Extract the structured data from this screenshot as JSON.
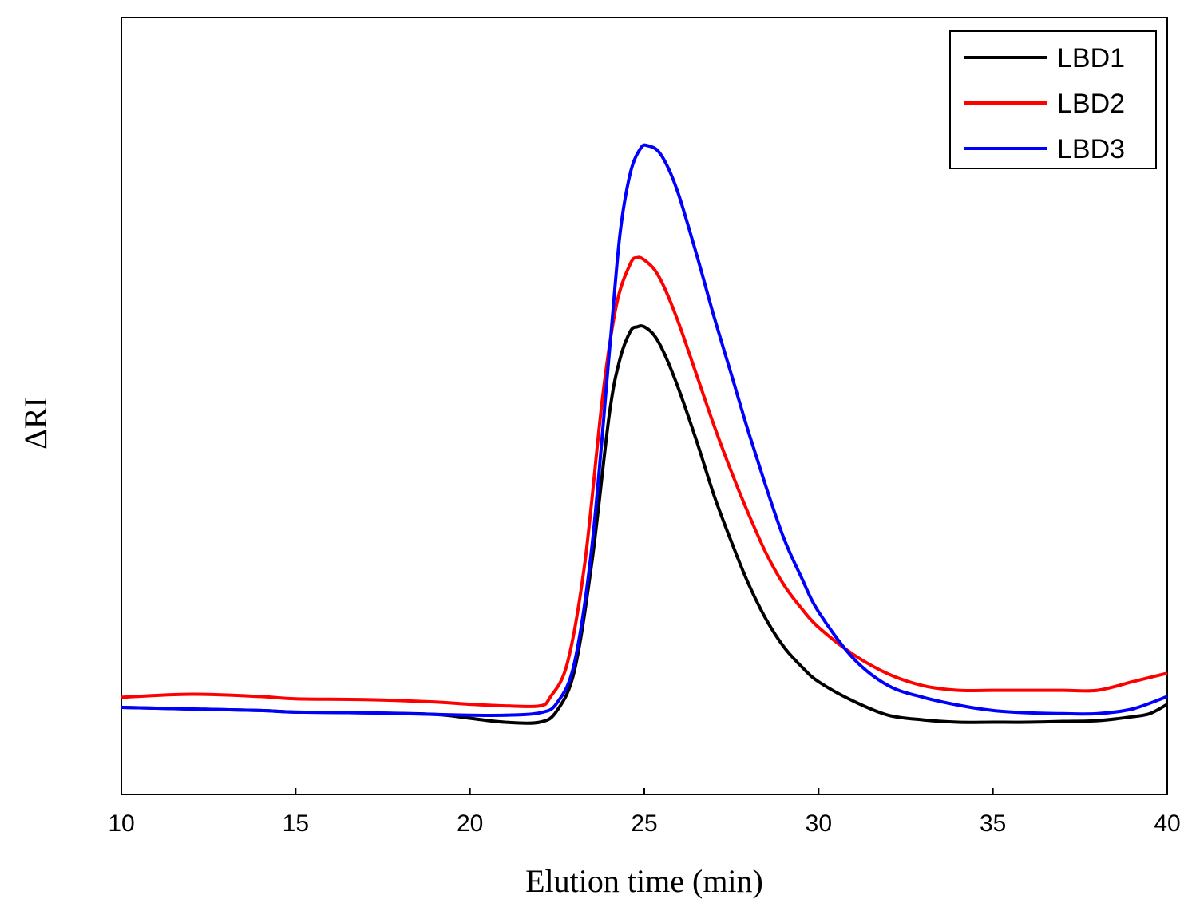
{
  "chart_data": {
    "type": "line",
    "title": "",
    "xlabel": "Elution time (min)",
    "ylabel": "ΔRI",
    "xlim": [
      10,
      40
    ],
    "ylim": [
      0,
      100
    ],
    "xticks": [
      10,
      15,
      20,
      25,
      30,
      35,
      40
    ],
    "yticks_shown": false,
    "grid": false,
    "legend_position": "top-right",
    "series": [
      {
        "name": "LBD1",
        "color": "#000000",
        "x": [
          10,
          12,
          14,
          15,
          17,
          19,
          20,
          21,
          22,
          22.5,
          23,
          23.5,
          24,
          24.3,
          24.6,
          24.8,
          25,
          25.3,
          25.6,
          26,
          26.5,
          27,
          27.5,
          28,
          28.5,
          29,
          29.5,
          30,
          31,
          32,
          33,
          34,
          35,
          36,
          37,
          38,
          39,
          39.5,
          40
        ],
        "y": [
          11.2,
          11.0,
          10.8,
          10.6,
          10.5,
          10.3,
          9.8,
          9.3,
          9.3,
          10.8,
          16,
          30,
          49,
          56,
          59.6,
          60.2,
          60.2,
          59,
          56.5,
          52,
          45.5,
          38.5,
          32.5,
          27,
          22.5,
          19,
          16.5,
          14.5,
          12,
          10.2,
          9.6,
          9.3,
          9.3,
          9.3,
          9.4,
          9.5,
          10,
          10.4,
          11.6
        ]
      },
      {
        "name": "LBD2",
        "color": "#ff0000",
        "x": [
          10,
          12,
          14,
          15,
          17,
          19,
          20,
          21,
          22,
          22.3,
          22.8,
          23.3,
          23.8,
          24.2,
          24.6,
          24.8,
          25,
          25.3,
          25.6,
          26,
          26.5,
          27,
          27.5,
          28,
          28.5,
          29,
          29.5,
          30,
          31,
          32,
          33,
          34,
          35,
          36,
          37,
          38,
          39,
          40
        ],
        "y": [
          12.5,
          12.9,
          12.6,
          12.3,
          12.2,
          11.9,
          11.6,
          11.4,
          11.4,
          12.5,
          17,
          30,
          51,
          63,
          68.3,
          69.1,
          68.8,
          67.5,
          65,
          60.5,
          54,
          47.5,
          41.5,
          36,
          31,
          27,
          24,
          21.5,
          18,
          15.5,
          14,
          13.4,
          13.4,
          13.4,
          13.4,
          13.4,
          14.5,
          15.6
        ]
      },
      {
        "name": "LBD3",
        "color": "#0000ff",
        "x": [
          10,
          12,
          14,
          15,
          17,
          19,
          20,
          21,
          22,
          22.5,
          23,
          23.5,
          24,
          24.3,
          24.6,
          24.9,
          25.1,
          25.4,
          25.7,
          26,
          26.5,
          27,
          27.5,
          28,
          28.5,
          29,
          29.5,
          30,
          31,
          32,
          33,
          34,
          35,
          36,
          37,
          38,
          39,
          40
        ],
        "y": [
          11.2,
          11.0,
          10.8,
          10.6,
          10.5,
          10.3,
          10.2,
          10.2,
          10.5,
          11.8,
          17,
          32,
          57,
          72,
          80,
          83.2,
          83.5,
          82.8,
          80.5,
          77,
          69.5,
          61.5,
          54,
          46.5,
          39.5,
          33,
          28,
          23.5,
          17.5,
          14,
          12.5,
          11.5,
          10.8,
          10.5,
          10.4,
          10.4,
          11,
          12.6
        ]
      }
    ]
  },
  "legend": {
    "entries": [
      "LBD1",
      "LBD2",
      "LBD3"
    ]
  }
}
